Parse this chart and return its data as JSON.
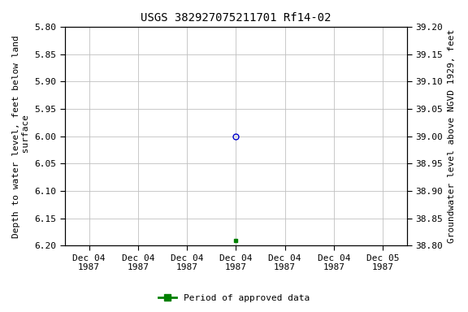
{
  "title": "USGS 382927075211701 Rf14-02",
  "ylabel_left": "Depth to water level, feet below land\n surface",
  "ylabel_right": "Groundwater level above NGVD 1929, feet",
  "ylim_left_top": 5.8,
  "ylim_left_bottom": 6.2,
  "ylim_right_top": 39.2,
  "ylim_right_bottom": 38.8,
  "yticks_left": [
    5.8,
    5.85,
    5.9,
    5.95,
    6.0,
    6.05,
    6.1,
    6.15,
    6.2
  ],
  "yticks_right": [
    39.2,
    39.15,
    39.1,
    39.05,
    39.0,
    38.95,
    38.9,
    38.85,
    38.8
  ],
  "xtick_labels": [
    "Dec 04\n1987",
    "Dec 04\n1987",
    "Dec 04\n1987",
    "Dec 04\n1987",
    "Dec 04\n1987",
    "Dec 04\n1987",
    "Dec 05\n1987"
  ],
  "xtick_positions": [
    0,
    1,
    2,
    3,
    4,
    5,
    6
  ],
  "xlim": [
    -0.5,
    6.5
  ],
  "point_blue_x": 3,
  "point_blue_y": 6.0,
  "point_green_x": 3,
  "point_green_y": 6.19,
  "blue_color": "#0000cc",
  "green_color": "#008000",
  "background_color": "#ffffff",
  "grid_color": "#c0c0c0",
  "legend_label": "Period of approved data",
  "title_fontsize": 10,
  "label_fontsize": 8,
  "tick_fontsize": 8
}
